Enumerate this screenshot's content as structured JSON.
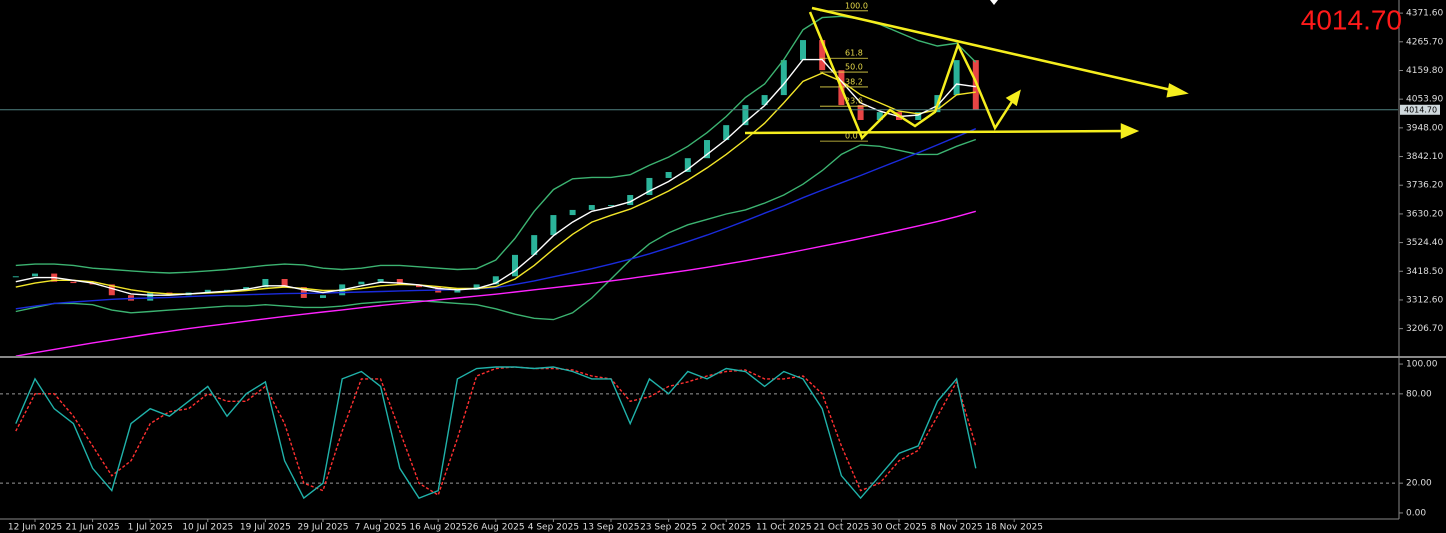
{
  "chart_data": [
    {
      "type": "candlestick",
      "categories": [
        null,
        "12 Jun 2025",
        null,
        null,
        "21 Jun 2025",
        null,
        null,
        "1 Jul 2025",
        null,
        null,
        "10 Jul 2025",
        null,
        null,
        "19 Jul 2025",
        null,
        null,
        "29 Jul 2025",
        null,
        null,
        "7 Aug 2025",
        null,
        null,
        "16 Aug 2025",
        null,
        null,
        "26 Aug 2025",
        null,
        null,
        "4 Sep 2025",
        null,
        null,
        "13 Sep 2025",
        null,
        null,
        "23 Sep 2025",
        null,
        null,
        "2 Oct 2025",
        null,
        null,
        "11 Oct 2025",
        null,
        null,
        "21 Oct 2025",
        null,
        null,
        "30 Oct 2025",
        null,
        null,
        "8 Nov 2025",
        null,
        null,
        "18 Nov 2025"
      ],
      "close": [
        3400,
        3410,
        3380,
        3375,
        3370,
        3330,
        3310,
        3340,
        3330,
        3340,
        3350,
        3350,
        3360,
        3390,
        3360,
        3320,
        3330,
        3370,
        3380,
        3390,
        3370,
        3360,
        3340,
        3350,
        3370,
        3400,
        3479,
        3552,
        3626,
        3645,
        3663,
        3663,
        3700,
        3763,
        3785,
        3836,
        3903,
        3958,
        4032,
        4069,
        4198,
        4272,
        4161,
        4032,
        3977,
        4006,
        3977,
        4006,
        4069,
        4198,
        4014.7,
        null,
        null
      ],
      "up_color": "#2bb39a",
      "down_color": "#e84545",
      "series": [
        {
          "color": "#3cb371",
          "values": [
            3440,
            3445,
            3445,
            3440,
            3430,
            3425,
            3420,
            3415,
            3412,
            3415,
            3420,
            3425,
            3432,
            3440,
            3445,
            3442,
            3430,
            3425,
            3430,
            3440,
            3440,
            3435,
            3430,
            3425,
            3428,
            3460,
            3540,
            3640,
            3720,
            3760,
            3765,
            3765,
            3775,
            3810,
            3840,
            3880,
            3930,
            3990,
            4060,
            4110,
            4200,
            4310,
            4355,
            4360,
            4350,
            4330,
            4300,
            4270,
            4250,
            4260,
            4190,
            null,
            null
          ]
        },
        {
          "color": "#3cb371",
          "values": [
            3270,
            3285,
            3300,
            3300,
            3295,
            3275,
            3265,
            3270,
            3275,
            3280,
            3285,
            3290,
            3290,
            3295,
            3290,
            3285,
            3285,
            3290,
            3300,
            3305,
            3310,
            3310,
            3305,
            3300,
            3295,
            3280,
            3260,
            3245,
            3240,
            3265,
            3320,
            3390,
            3460,
            3520,
            3560,
            3590,
            3610,
            3630,
            3645,
            3670,
            3700,
            3740,
            3790,
            3850,
            3885,
            3880,
            3865,
            3850,
            3850,
            3880,
            3905,
            null,
            null
          ]
        },
        {
          "color": "#ff22ff",
          "values": [
            3105,
            3118,
            3130,
            3142,
            3154,
            3165,
            3176,
            3187,
            3197,
            3207,
            3216,
            3225,
            3234,
            3243,
            3252,
            3260,
            3268,
            3276,
            3284,
            3292,
            3299,
            3306,
            3313,
            3320,
            3327,
            3334,
            3342,
            3350,
            3358,
            3366,
            3374,
            3383,
            3392,
            3402,
            3412,
            3422,
            3433,
            3445,
            3457,
            3470,
            3483,
            3497,
            3511,
            3525,
            3540,
            3555,
            3570,
            3586,
            3602,
            3620,
            3640,
            null,
            null
          ]
        },
        {
          "color": "#1a2bdc",
          "values": [
            3280,
            3290,
            3300,
            3305,
            3310,
            3315,
            3318,
            3320,
            3322,
            3325,
            3328,
            3330,
            3332,
            3334,
            3336,
            3337,
            3338,
            3340,
            3342,
            3344,
            3346,
            3348,
            3349,
            3351,
            3354,
            3358,
            3370,
            3383,
            3398,
            3413,
            3428,
            3445,
            3463,
            3483,
            3505,
            3528,
            3552,
            3578,
            3605,
            3633,
            3660,
            3690,
            3718,
            3745,
            3772,
            3800,
            3828,
            3856,
            3885,
            3915,
            3945,
            null,
            null
          ]
        },
        {
          "color": "#f2e529",
          "values": [
            3360,
            3375,
            3385,
            3385,
            3380,
            3365,
            3350,
            3340,
            3335,
            3335,
            3338,
            3342,
            3347,
            3355,
            3360,
            3355,
            3348,
            3348,
            3355,
            3365,
            3370,
            3368,
            3362,
            3355,
            3355,
            3362,
            3390,
            3440,
            3500,
            3555,
            3600,
            3625,
            3648,
            3680,
            3715,
            3755,
            3800,
            3850,
            3905,
            3965,
            4040,
            4120,
            4150,
            4120,
            4070,
            4040,
            4010,
            4000,
            4015,
            4070,
            4080,
            null,
            null
          ]
        },
        {
          "color": "#ffffff",
          "values": [
            3380,
            3395,
            3395,
            3385,
            3375,
            3355,
            3335,
            3330,
            3330,
            3335,
            3340,
            3345,
            3352,
            3365,
            3365,
            3350,
            3340,
            3350,
            3365,
            3378,
            3375,
            3368,
            3355,
            3350,
            3355,
            3375,
            3420,
            3480,
            3550,
            3600,
            3640,
            3655,
            3675,
            3715,
            3750,
            3795,
            3850,
            3905,
            3970,
            4030,
            4110,
            4200,
            4200,
            4120,
            4040,
            4010,
            3990,
            3995,
            4030,
            4110,
            4100,
            null,
            null
          ]
        }
      ],
      "ylim": [
        3102,
        4420
      ],
      "yticks": [
        {
          "value": 4371.6,
          "label": "4371.60"
        },
        {
          "value": 4265.7,
          "label": "4265.70"
        },
        {
          "value": 4159.8,
          "label": "4159.80"
        },
        {
          "value": 4053.9,
          "label": "4053.90"
        },
        {
          "value": 3948,
          "label": "3948.00"
        },
        {
          "value": 3842.1,
          "label": "3842.10"
        },
        {
          "value": 3736.2,
          "label": "3736.20"
        },
        {
          "value": 3630.2,
          "label": "3630.20"
        },
        {
          "value": 3524.4,
          "label": "3524.40"
        },
        {
          "value": 3418.5,
          "label": "3418.50"
        },
        {
          "value": 3312.6,
          "label": "3312.60"
        },
        {
          "value": 3206.7,
          "label": "3206.70"
        }
      ],
      "last_price": {
        "value": 4014.7,
        "label": "4014.70"
      },
      "fib": {
        "color": "#e6d94a",
        "levels": [
          {
            "label": "100.0",
            "price": 4380
          },
          {
            "label": "61.8",
            "price": 4205
          },
          {
            "label": "50.0",
            "price": 4154
          },
          {
            "label": "38.2",
            "price": 4099
          },
          {
            "label": "23.6",
            "price": 4028
          },
          {
            "label": "0.0",
            "price": 3899
          }
        ]
      }
    },
    {
      "type": "line",
      "series": [
        {
          "color": "#ff3030",
          "dash": true,
          "values": [
            55,
            80,
            80,
            65,
            45,
            25,
            35,
            60,
            68,
            70,
            80,
            75,
            75,
            85,
            60,
            20,
            15,
            55,
            90,
            90,
            55,
            20,
            12,
            50,
            92,
            97,
            98,
            97,
            97,
            96,
            92,
            90,
            75,
            78,
            85,
            88,
            92,
            95,
            96,
            90,
            90,
            92,
            80,
            45,
            15,
            20,
            35,
            42,
            65,
            88,
            45,
            null,
            null
          ]
        },
        {
          "color": "#20b2aa",
          "dash": false,
          "values": [
            60,
            90,
            70,
            60,
            30,
            15,
            60,
            70,
            65,
            75,
            85,
            65,
            80,
            88,
            35,
            10,
            20,
            90,
            95,
            85,
            30,
            10,
            15,
            90,
            97,
            98,
            98,
            97,
            98,
            95,
            90,
            90,
            60,
            90,
            80,
            95,
            90,
            97,
            95,
            85,
            95,
            90,
            70,
            25,
            10,
            25,
            40,
            45,
            75,
            90,
            30,
            null,
            null
          ]
        }
      ],
      "ylim": [
        -3.4,
        103.4
      ],
      "yticks": [
        {
          "value": 100,
          "label": "100.00"
        },
        {
          "value": 80,
          "label": "80.00"
        },
        {
          "value": 20,
          "label": "20.00"
        },
        {
          "value": 0,
          "label": "0.00"
        }
      ],
      "levels": [
        80,
        20
      ]
    }
  ]
}
